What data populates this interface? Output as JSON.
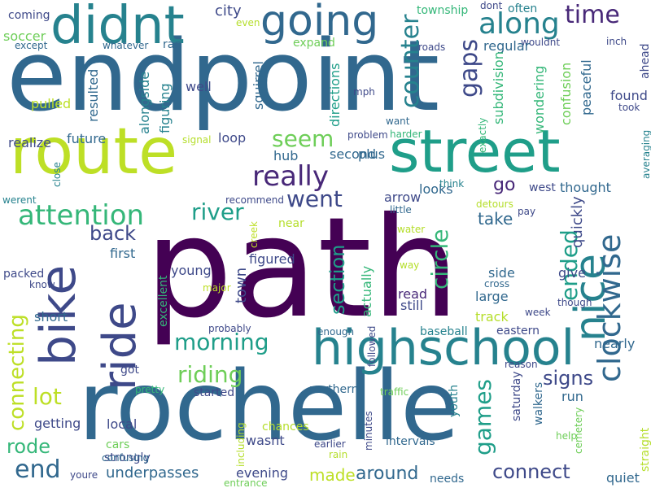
{
  "palette": {
    "c1": "#440154",
    "c2": "#482878",
    "c3": "#3e4989",
    "c4": "#31688e",
    "c5": "#26828e",
    "c6": "#1f9e89",
    "c7": "#35b779",
    "c8": "#6ece58",
    "c9": "#b5de2b",
    "c10": "#bddf26"
  },
  "words": [
    {
      "text": "path",
      "color": "c1"
    },
    {
      "text": "endpoint",
      "color": "c4"
    },
    {
      "text": "rochelle",
      "color": "c4"
    },
    {
      "text": "route",
      "color": "c10"
    },
    {
      "text": "street",
      "color": "c6"
    },
    {
      "text": "highschool",
      "color": "c5"
    },
    {
      "text": "didnt",
      "color": "c5"
    },
    {
      "text": "bike",
      "color": "c3"
    },
    {
      "text": "ride",
      "color": "c3"
    },
    {
      "text": "going",
      "color": "c4"
    },
    {
      "text": "nice",
      "color": "c5"
    },
    {
      "text": "clockwise",
      "color": "c4"
    },
    {
      "text": "really",
      "color": "c2"
    },
    {
      "text": "along",
      "color": "c5"
    },
    {
      "text": "attention",
      "color": "c7"
    },
    {
      "text": "river",
      "color": "c6"
    },
    {
      "text": "morning",
      "color": "c6"
    },
    {
      "text": "riding",
      "color": "c8"
    },
    {
      "text": "time",
      "color": "c2"
    },
    {
      "text": "went",
      "color": "c3"
    },
    {
      "text": "seem",
      "color": "c8"
    },
    {
      "text": "counter",
      "color": "c5"
    },
    {
      "text": "gaps",
      "color": "c3"
    },
    {
      "text": "connecting",
      "color": "c10"
    },
    {
      "text": "end",
      "color": "c4"
    },
    {
      "text": "lot",
      "color": "c10"
    },
    {
      "text": "rode",
      "color": "c7"
    },
    {
      "text": "connect",
      "color": "c3"
    },
    {
      "text": "games",
      "color": "c6"
    },
    {
      "text": "signs",
      "color": "c3"
    },
    {
      "text": "ended",
      "color": "c6"
    },
    {
      "text": "section",
      "color": "c6"
    },
    {
      "text": "circle",
      "color": "c7"
    },
    {
      "text": "back",
      "color": "c3"
    },
    {
      "text": "around",
      "color": "c4"
    },
    {
      "text": "made",
      "color": "c10"
    },
    {
      "text": "underpasses",
      "color": "c4"
    },
    {
      "text": "city",
      "color": "c3"
    },
    {
      "text": "go",
      "color": "c2"
    },
    {
      "text": "take",
      "color": "c4"
    },
    {
      "text": "young",
      "color": "c3"
    },
    {
      "text": "town",
      "color": "c3"
    },
    {
      "text": "figured",
      "color": "c3"
    },
    {
      "text": "hub",
      "color": "c4"
    },
    {
      "text": "second",
      "color": "c4"
    },
    {
      "text": "plus",
      "color": "c4"
    },
    {
      "text": "arrow",
      "color": "c3"
    },
    {
      "text": "looks",
      "color": "c4"
    },
    {
      "text": "west",
      "color": "c3"
    },
    {
      "text": "thought",
      "color": "c4"
    },
    {
      "text": "quickly",
      "color": "c3"
    },
    {
      "text": "give",
      "color": "c3"
    },
    {
      "text": "side",
      "color": "c4"
    },
    {
      "text": "large",
      "color": "c4"
    },
    {
      "text": "track",
      "color": "c9"
    },
    {
      "text": "eastern",
      "color": "c3"
    },
    {
      "text": "baseball",
      "color": "c5"
    },
    {
      "text": "nearly",
      "color": "c4"
    },
    {
      "text": "saturday",
      "color": "c3"
    },
    {
      "text": "walkers",
      "color": "c4"
    },
    {
      "text": "run",
      "color": "c4"
    },
    {
      "text": "youth",
      "color": "c5"
    },
    {
      "text": "northern",
      "color": "c4"
    },
    {
      "text": "intervals",
      "color": "c4"
    },
    {
      "text": "needs",
      "color": "c4"
    },
    {
      "text": "quiet",
      "color": "c4"
    },
    {
      "text": "wasnt",
      "color": "c3"
    },
    {
      "text": "chances",
      "color": "c9"
    },
    {
      "text": "evening",
      "color": "c3"
    },
    {
      "text": "local",
      "color": "c3"
    },
    {
      "text": "cars",
      "color": "c8"
    },
    {
      "text": "getting",
      "color": "c3"
    },
    {
      "text": "short",
      "color": "c4"
    },
    {
      "text": "packed",
      "color": "c3"
    },
    {
      "text": "first",
      "color": "c4"
    },
    {
      "text": "excellent",
      "color": "c7"
    },
    {
      "text": "got",
      "color": "c3"
    },
    {
      "text": "started",
      "color": "c3"
    },
    {
      "text": "pretty",
      "color": "c7"
    },
    {
      "text": "strongly",
      "color": "c3"
    },
    {
      "text": "confusing",
      "color": "c4"
    },
    {
      "text": "including",
      "color": "c9"
    },
    {
      "text": "youre",
      "color": "c3"
    },
    {
      "text": "entrance",
      "color": "c8"
    },
    {
      "text": "minutes",
      "color": "c3"
    },
    {
      "text": "rain",
      "color": "c9"
    },
    {
      "text": "earlier",
      "color": "c3"
    },
    {
      "text": "traffic",
      "color": "c8"
    },
    {
      "text": "help",
      "color": "c8"
    },
    {
      "text": "straight",
      "color": "c9"
    },
    {
      "text": "cemetery",
      "color": "c8"
    },
    {
      "text": "reason",
      "color": "c3"
    },
    {
      "text": "enough",
      "color": "c4"
    },
    {
      "text": "followed",
      "color": "c3"
    },
    {
      "text": "probably",
      "color": "c3"
    },
    {
      "text": "major",
      "color": "c10"
    },
    {
      "text": "creek",
      "color": "c10"
    },
    {
      "text": "read",
      "color": "c2"
    },
    {
      "text": "still",
      "color": "c3"
    },
    {
      "text": "actually",
      "color": "c7"
    },
    {
      "text": "way",
      "color": "c9"
    },
    {
      "text": "water",
      "color": "c9"
    },
    {
      "text": "cross",
      "color": "c4"
    },
    {
      "text": "though",
      "color": "c3"
    },
    {
      "text": "week",
      "color": "c3"
    },
    {
      "text": "pay",
      "color": "c3"
    },
    {
      "text": "detours",
      "color": "c9"
    },
    {
      "text": "little",
      "color": "c4"
    },
    {
      "text": "think",
      "color": "c5"
    },
    {
      "text": "exactly",
      "color": "c7"
    },
    {
      "text": "want",
      "color": "c4"
    },
    {
      "text": "harder",
      "color": "c7"
    },
    {
      "text": "problem",
      "color": "c3"
    },
    {
      "text": "recommend",
      "color": "c3"
    },
    {
      "text": "near",
      "color": "c9"
    },
    {
      "text": "signal",
      "color": "c9"
    },
    {
      "text": "close",
      "color": "c5"
    },
    {
      "text": "werent",
      "color": "c5"
    },
    {
      "text": "realize",
      "color": "c3"
    },
    {
      "text": "future",
      "color": "c4"
    },
    {
      "text": "loop",
      "color": "c3"
    },
    {
      "text": "alongside",
      "color": "c5"
    },
    {
      "text": "figuring",
      "color": "c5"
    },
    {
      "text": "pulled",
      "color": "c10"
    },
    {
      "text": "resulted",
      "color": "c4"
    },
    {
      "text": "ran",
      "color": "c4"
    },
    {
      "text": "well",
      "color": "c3"
    },
    {
      "text": "squirrel",
      "color": "c4"
    },
    {
      "text": "directions",
      "color": "c6"
    },
    {
      "text": "mph",
      "color": "c3"
    },
    {
      "text": "expand",
      "color": "c8"
    },
    {
      "text": "whatever",
      "color": "c4"
    },
    {
      "text": "except",
      "color": "c4"
    },
    {
      "text": "soccer",
      "color": "c8"
    },
    {
      "text": "coming",
      "color": "c3"
    },
    {
      "text": "even",
      "color": "c9"
    },
    {
      "text": "roads",
      "color": "c3"
    },
    {
      "text": "township",
      "color": "c7"
    },
    {
      "text": "dont",
      "color": "c3"
    },
    {
      "text": "often",
      "color": "c5"
    },
    {
      "text": "wouldnt",
      "color": "c3"
    },
    {
      "text": "regular",
      "color": "c4"
    },
    {
      "text": "subdivision",
      "color": "c7"
    },
    {
      "text": "confusion",
      "color": "c8"
    },
    {
      "text": "wondering",
      "color": "c7"
    },
    {
      "text": "peaceful",
      "color": "c4"
    },
    {
      "text": "found",
      "color": "c3"
    },
    {
      "text": "inch",
      "color": "c3"
    },
    {
      "text": "ahead",
      "color": "c3"
    },
    {
      "text": "took",
      "color": "c3"
    },
    {
      "text": "averaging",
      "color": "c5"
    },
    {
      "text": "know",
      "color": "c3"
    }
  ]
}
